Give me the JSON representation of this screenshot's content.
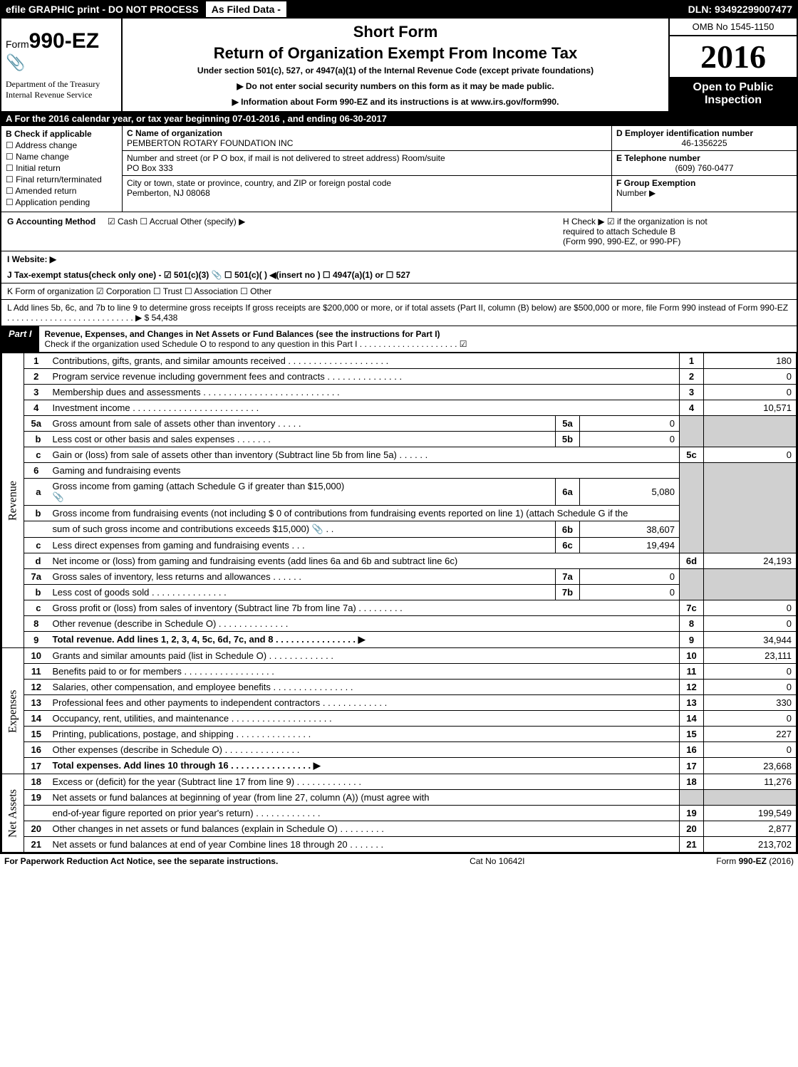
{
  "top_bar": {
    "left": "efile GRAPHIC print - DO NOT PROCESS",
    "mid": "As Filed Data -",
    "right": "DLN: 93492299007477"
  },
  "header": {
    "form_prefix": "Form",
    "form_no": "990-EZ",
    "dept1": "Department of the Treasury",
    "dept2": "Internal Revenue Service",
    "short_form": "Short Form",
    "main_title": "Return of Organization Exempt From Income Tax",
    "sub1": "Under section 501(c), 527, or 4947(a)(1) of the Internal Revenue Code (except private foundations)",
    "sub2": "▶ Do not enter social security numbers on this form as it may be made public.",
    "sub3": "▶ Information about Form 990-EZ and its instructions is at www.irs.gov/form990.",
    "omb": "OMB No  1545-1150",
    "year": "2016",
    "open1": "Open to Public",
    "open2": "Inspection"
  },
  "line_a": "A  For the 2016 calendar year, or tax year beginning 07-01-2016             , and ending 06-30-2017",
  "section_b": {
    "title": "B  Check if applicable",
    "items": [
      "☐ Address change",
      "☐ Name change",
      "☐ Initial return",
      "☐ Final return/terminated",
      "☐ Amended return",
      "☐ Application pending"
    ]
  },
  "section_c": {
    "name_label": "C Name of organization",
    "name": "PEMBERTON ROTARY FOUNDATION INC",
    "street_label": "Number and street (or P  O  box, if mail is not delivered to street address)  Room/suite",
    "street": "PO Box 333",
    "city_label": "City or town, state or province, country, and ZIP or foreign postal code",
    "city": "Pemberton, NJ  08068"
  },
  "section_d": {
    "ein_label": "D Employer identification number",
    "ein": "46-1356225",
    "phone_label": "E Telephone number",
    "phone": "(609) 760-0477",
    "group_label": "F Group Exemption",
    "group_label2": "Number    ▶"
  },
  "line_g": {
    "label": "G Accounting Method",
    "opts": "☑ Cash   ☐ Accrual   Other (specify) ▶"
  },
  "line_h": {
    "text1": "H   Check ▶  ☑  if the organization is not",
    "text2": "required to attach Schedule B",
    "text3": "(Form 990, 990-EZ, or 990-PF)"
  },
  "line_i": "I Website: ▶",
  "line_j": "J Tax-exempt status(check only one) - ☑ 501(c)(3) 📎 ☐  501(c)(  ) ◀(insert no ) ☐ 4947(a)(1) or  ☐ 527",
  "line_k": "K Form of organization     ☑ Corporation   ☐ Trust   ☐ Association   ☐ Other",
  "line_l": {
    "text": "L Add lines 5b, 6c, and 7b to line 9 to determine gross receipts  If gross receipts are $200,000 or more, or if total assets (Part II, column (B) below) are $500,000 or more, file Form 990 instead of Form 990-EZ  . . . . . . . . . . . . . . . . . . . . . . . . . . . ▶ $ 54,438"
  },
  "part1": {
    "tab": "Part I",
    "title": "Revenue, Expenses, and Changes in Net Assets or Fund Balances (see the instructions for Part I)",
    "sub": "Check if the organization used Schedule O to respond to any question in this Part I . . . . . . . . . . . . . . . . . . . . . ☑"
  },
  "side_labels": {
    "revenue": "Revenue",
    "expenses": "Expenses",
    "netassets": "Net Assets"
  },
  "rows": {
    "r1": {
      "n": "1",
      "d": "Contributions, gifts, grants, and similar amounts received . . . . . . . . . . . . . . . . . . . .",
      "on": "1",
      "ov": "180"
    },
    "r2": {
      "n": "2",
      "d": "Program service revenue including government fees and contracts . . . . . . . . . . . . . . .",
      "on": "2",
      "ov": "0"
    },
    "r3": {
      "n": "3",
      "d": "Membership dues and assessments . . . . . . . . . . . . . . . . . . . . . . . . . . .",
      "on": "3",
      "ov": "0"
    },
    "r4": {
      "n": "4",
      "d": "Investment income . . . . . . . . . . . . . . . . . . . . . . . . .",
      "on": "4",
      "ov": "10,571"
    },
    "r5a": {
      "n": "5a",
      "d": "Gross amount from sale of assets other than inventory . . . . .",
      "in": "5a",
      "iv": "0"
    },
    "r5b": {
      "n": "b",
      "d": "Less  cost or other basis and sales expenses . . . . . . .",
      "in": "5b",
      "iv": "0"
    },
    "r5c": {
      "n": "c",
      "d": "Gain or (loss) from sale of assets other than inventory (Subtract line 5b from line 5a) . . . . . .",
      "on": "5c",
      "ov": "0"
    },
    "r6": {
      "n": "6",
      "d": "Gaming and fundraising events"
    },
    "r6a": {
      "n": "a",
      "d": "Gross income from gaming (attach Schedule G if greater than $15,000)\n📎",
      "in": "6a",
      "iv": "5,080"
    },
    "r6b": {
      "n": "b",
      "d": "Gross income from fundraising events (not including $  0            of contributions from fundraising events reported on line 1) (attach Schedule G if the"
    },
    "r6b2": {
      "d": "sum of such gross income and contributions exceeds $15,000) 📎 .  .",
      "in": "6b",
      "iv": "38,607"
    },
    "r6c": {
      "n": "c",
      "d": "Less  direct expenses from gaming and fundraising events       .  .  .",
      "in": "6c",
      "iv": "19,494"
    },
    "r6d": {
      "n": "d",
      "d": "Net income or (loss) from gaming and fundraising events (add lines 6a and 6b and subtract line 6c)",
      "on": "6d",
      "ov": "24,193"
    },
    "r7a": {
      "n": "7a",
      "d": "Gross sales of inventory, less returns and allowances . . . . . .",
      "in": "7a",
      "iv": "0"
    },
    "r7b": {
      "n": "b",
      "d": "Less  cost of goods sold             . . . . . . . . . . . . . . .",
      "in": "7b",
      "iv": "0"
    },
    "r7c": {
      "n": "c",
      "d": "Gross profit or (loss) from sales of inventory (Subtract line 7b from line 7a) . . . . . . . . .",
      "on": "7c",
      "ov": "0"
    },
    "r8": {
      "n": "8",
      "d": "Other revenue (describe in Schedule O)                        . . . . . . . . . . . . . .",
      "on": "8",
      "ov": "0"
    },
    "r9": {
      "n": "9",
      "d": "Total revenue. Add lines 1, 2, 3, 4, 5c, 6d, 7c, and 8 . . . . . . . . . . . . . . . .       ▶",
      "on": "9",
      "ov": "34,944",
      "bold": true
    },
    "r10": {
      "n": "10",
      "d": "Grants and similar amounts paid (list in Schedule O)           . . . . . . . . . . . . .",
      "on": "10",
      "ov": "23,111"
    },
    "r11": {
      "n": "11",
      "d": "Benefits paid to or for members                     . . . . . . . . . . . . . . . . . .",
      "on": "11",
      "ov": "0"
    },
    "r12": {
      "n": "12",
      "d": "Salaries, other compensation, and employee benefits . . . . . . . . . . . . . . . .",
      "on": "12",
      "ov": "0"
    },
    "r13": {
      "n": "13",
      "d": "Professional fees and other payments to independent contractors . . . . . . . . . . . . .",
      "on": "13",
      "ov": "330"
    },
    "r14": {
      "n": "14",
      "d": "Occupancy, rent, utilities, and maintenance . . . . . . . . . . . . . . . . . . . .",
      "on": "14",
      "ov": "0"
    },
    "r15": {
      "n": "15",
      "d": "Printing, publications, postage, and shipping            . . . . . . . . . . . . . . .",
      "on": "15",
      "ov": "227"
    },
    "r16": {
      "n": "16",
      "d": "Other expenses (describe in Schedule O)                 . . . . . . . . . . . . . . .",
      "on": "16",
      "ov": "0"
    },
    "r17": {
      "n": "17",
      "d": "Total expenses. Add lines 10 through 16         . . . . . . . . . . . . . . . .       ▶",
      "on": "17",
      "ov": "23,668",
      "bold": true
    },
    "r18": {
      "n": "18",
      "d": "Excess or (deficit) for the year (Subtract line 17 from line 9)       . . . . . . . . . . . . .",
      "on": "18",
      "ov": "11,276"
    },
    "r19": {
      "n": "19",
      "d": "Net assets or fund balances at beginning of year (from line 27, column (A)) (must agree with"
    },
    "r19b": {
      "d": "end-of-year figure reported on prior year's return)              . . . . . . . . . . . . .",
      "on": "19",
      "ov": "199,549"
    },
    "r20": {
      "n": "20",
      "d": "Other changes in net assets or fund balances (explain in Schedule O)     . . . . . . . . .",
      "on": "20",
      "ov": "2,877"
    },
    "r21": {
      "n": "21",
      "d": "Net assets or fund balances at end of year  Combine lines 18 through 20       . . . . . . .",
      "on": "21",
      "ov": "213,702"
    }
  },
  "footer": {
    "l": "For Paperwork Reduction Act Notice, see the separate instructions.",
    "m": "Cat  No  10642I",
    "r": "Form 990-EZ (2016)"
  }
}
